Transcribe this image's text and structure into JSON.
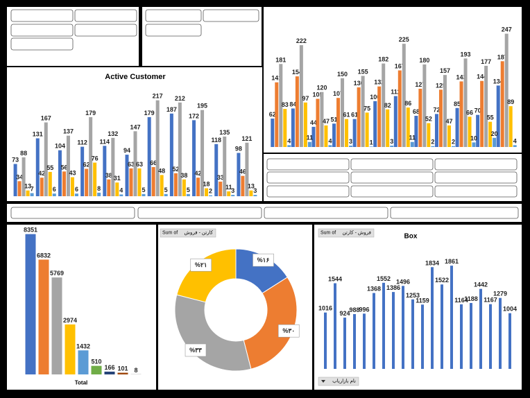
{
  "chart_data": [
    {
      "type": "bar",
      "series": [
        {
          "color": "#4472c4",
          "values": [
            62,
            84,
            44,
            51,
            61,
            100,
            111,
            68,
            72,
            85,
            70,
            134
          ]
        },
        {
          "color": "#ed7d31",
          "values": [
            141,
            154,
            105,
            107,
            130,
            132,
            167,
            127,
            125,
            143,
            144,
            187
          ]
        },
        {
          "color": "#a5a5a5",
          "values": [
            181,
            222,
            120,
            150,
            155,
            182,
            225,
            180,
            157,
            193,
            177,
            247
          ]
        },
        {
          "color": "#ffc000",
          "values": [
            83,
            97,
            47,
            61,
            75,
            82,
            86,
            52,
            47,
            66,
            55,
            89
          ]
        },
        {
          "color": "#5b9bd5",
          "values": [
            4,
            11,
            4,
            3,
            1,
            3,
            11,
            2,
            2,
            10,
            20,
            4
          ]
        }
      ],
      "ylim": [
        0,
        260
      ]
    },
    {
      "type": "bar",
      "title": "Active Customer",
      "series": [
        {
          "color": "#4472c4",
          "values": [
            73,
            131,
            104,
            112,
            114,
            94,
            179,
            187,
            172,
            118,
            98
          ]
        },
        {
          "color": "#ed7d31",
          "values": [
            34,
            42,
            56,
            62,
            38,
            63,
            66,
            52,
            42,
            33,
            46
          ]
        },
        {
          "color": "#a5a5a5",
          "values": [
            88,
            167,
            137,
            179,
            132,
            147,
            217,
            212,
            195,
            135,
            121
          ]
        },
        {
          "color": "#ffc000",
          "values": [
            13,
            55,
            43,
            76,
            31,
            63,
            48,
            38,
            18,
            11,
            13
          ]
        },
        {
          "color": "#5b9bd5",
          "values": [
            7,
            6,
            6,
            8,
            4,
            5,
            5,
            5,
            2,
            3,
            3
          ]
        }
      ],
      "ylim": [
        0,
        240
      ]
    },
    {
      "type": "bar",
      "categories": [
        "Total"
      ],
      "series": [
        {
          "color": "#4472c4",
          "values": [
            8351
          ]
        },
        {
          "color": "#ed7d31",
          "values": [
            6832
          ]
        },
        {
          "color": "#a5a5a5",
          "values": [
            5769
          ]
        },
        {
          "color": "#ffc000",
          "values": [
            2974
          ]
        },
        {
          "color": "#5b9bd5",
          "values": [
            1432
          ]
        },
        {
          "color": "#70ad47",
          "values": [
            510
          ]
        },
        {
          "color": "#264478",
          "values": [
            166
          ]
        },
        {
          "color": "#9e480e",
          "values": [
            101
          ]
        },
        {
          "color": "#636363",
          "values": [
            8
          ]
        }
      ],
      "ylim": [
        0,
        8500
      ]
    },
    {
      "type": "pie",
      "donut": true,
      "field_button": {
        "prefix": "Sum of",
        "field": "کارتن - فروش"
      },
      "values": [
        16,
        30,
        33,
        21
      ],
      "value_labels": [
        "%۱۶",
        "%۳۰",
        "%۳۳",
        "%۲۱"
      ],
      "colors": [
        "#4472c4",
        "#ed7d31",
        "#a5a5a5",
        "#ffc000"
      ]
    },
    {
      "type": "bar",
      "title": "Box",
      "field_button": {
        "prefix": "Sum of",
        "field": "فروش - کارتن"
      },
      "axis_field_button": "نام بازاریاب",
      "series": [
        {
          "color": "#4472c4",
          "values": [
            1016,
            1544,
            924,
            988,
            996,
            1368,
            1552,
            1386,
            1496,
            1253,
            1159,
            1834,
            1522,
            1861,
            1164,
            1188,
            1442,
            1167,
            1279,
            1004
          ]
        }
      ],
      "ylim": [
        0,
        2000
      ]
    }
  ]
}
